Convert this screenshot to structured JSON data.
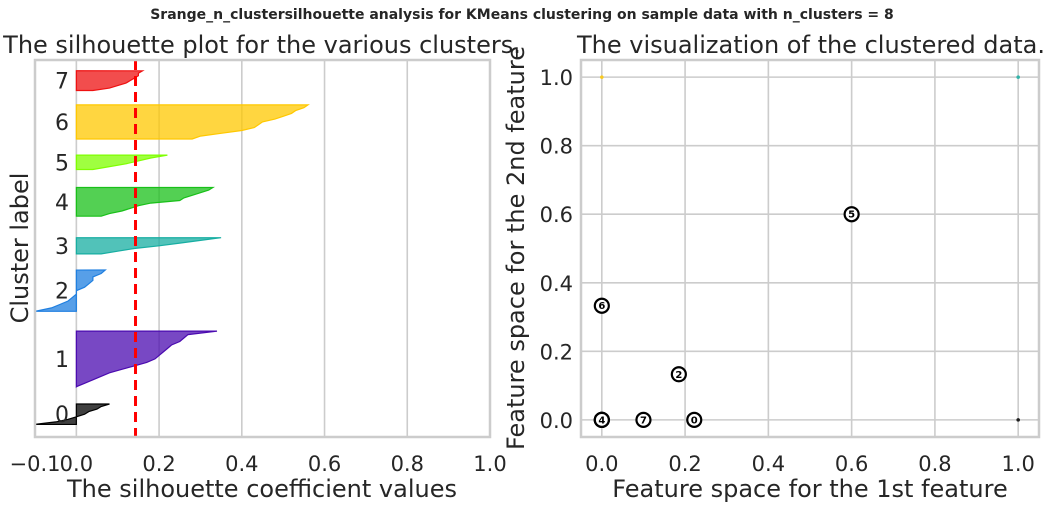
{
  "suptitle": "Srange_n_clustersilhouette analysis for KMeans clustering on sample data with n_clusters = 8",
  "colors": {
    "clusters": [
      "#000000",
      "#4b0bb0",
      "#1f7fe0",
      "#17aea2",
      "#19c019",
      "#7fff00",
      "#ffc800",
      "#ee1111"
    ],
    "centers_edge": "#000000",
    "avg_line": "#ff0000",
    "grid": "#cccccc"
  },
  "chart_data": [
    {
      "type": "area",
      "title": "The silhouette plot for the various clusters.",
      "xlabel": "The silhouette coefficient values",
      "ylabel": "Cluster label",
      "xlim": [
        -0.1,
        1.0
      ],
      "xticks": [
        -0.1,
        0.0,
        0.2,
        0.4,
        0.6,
        0.8,
        1.0
      ],
      "xtick_labels": [
        "−0.1",
        "0.0",
        "0.2",
        "0.4",
        "0.6",
        "0.8",
        "1.0"
      ],
      "grid": true,
      "silhouette_avg": 0.143,
      "clusters": [
        {
          "label": "0",
          "band": [
            0.35,
            0.92
          ],
          "values": [
            0.08,
            0.06,
            0.05,
            0.03,
            0.02,
            0.0,
            -0.02,
            -0.05,
            -0.1
          ]
        },
        {
          "label": "1",
          "band": [
            1.4,
            2.95
          ],
          "values": [
            0.34,
            0.27,
            0.26,
            0.25,
            0.23,
            0.22,
            0.21,
            0.2,
            0.19,
            0.17,
            0.14,
            0.11,
            0.08,
            0.06,
            0.04,
            0.02,
            0.0
          ]
        },
        {
          "label": "2",
          "band": [
            3.5,
            4.65
          ],
          "values": [
            0.07,
            0.06,
            0.04,
            0.04,
            0.03,
            0.02,
            0.0,
            0.0,
            -0.01,
            -0.02,
            -0.04,
            -0.06,
            -0.1
          ]
        },
        {
          "label": "3",
          "band": [
            5.1,
            5.55
          ],
          "values": [
            0.35,
            0.3,
            0.25,
            0.2,
            0.14,
            0.1,
            0.06
          ]
        },
        {
          "label": "4",
          "band": [
            6.15,
            6.95
          ],
          "values": [
            0.33,
            0.32,
            0.3,
            0.28,
            0.26,
            0.25,
            0.18,
            0.15,
            0.13,
            0.11,
            0.08,
            0.06
          ]
        },
        {
          "label": "5",
          "band": [
            7.45,
            7.85
          ],
          "values": [
            0.22,
            0.18,
            0.15,
            0.12,
            0.08,
            0.04
          ]
        },
        {
          "label": "6",
          "band": [
            8.3,
            9.25
          ],
          "values": [
            0.56,
            0.55,
            0.53,
            0.52,
            0.5,
            0.48,
            0.45,
            0.44,
            0.43,
            0.4,
            0.35,
            0.3,
            0.28
          ]
        },
        {
          "label": "7",
          "band": [
            9.65,
            10.2
          ],
          "values": [
            0.16,
            0.15,
            0.15,
            0.14,
            0.13,
            0.12,
            0.1,
            0.08,
            0.04
          ]
        }
      ]
    },
    {
      "type": "scatter",
      "title": "The visualization of the clustered data.",
      "xlabel": "Feature space for the 1st feature",
      "ylabel": "Feature space for the 2nd feature",
      "xlim": [
        -0.05,
        1.05
      ],
      "ylim": [
        -0.05,
        1.05
      ],
      "xticks": [
        0.0,
        0.2,
        0.4,
        0.6,
        0.8,
        1.0
      ],
      "yticks": [
        0.0,
        0.2,
        0.4,
        0.6,
        0.8,
        1.0
      ],
      "grid": true,
      "points": [
        {
          "x": 0.0,
          "y": 1.0,
          "cluster": 6
        },
        {
          "x": 1.0,
          "y": 1.0,
          "cluster": 3
        },
        {
          "x": 1.0,
          "y": 0.0,
          "cluster": 0
        }
      ],
      "centers": [
        {
          "label": "0",
          "x": 0.222,
          "y": 0.0
        },
        {
          "label": "1",
          "x": 0.0,
          "y": 0.0
        },
        {
          "label": "2",
          "x": 0.185,
          "y": 0.133
        },
        {
          "label": "3",
          "x": 0.0,
          "y": 0.0
        },
        {
          "label": "4",
          "x": 0.0,
          "y": 0.0
        },
        {
          "label": "5",
          "x": 0.6,
          "y": 0.6
        },
        {
          "label": "6",
          "x": 0.0,
          "y": 0.333
        },
        {
          "label": "7",
          "x": 0.1,
          "y": 0.0
        }
      ]
    }
  ]
}
